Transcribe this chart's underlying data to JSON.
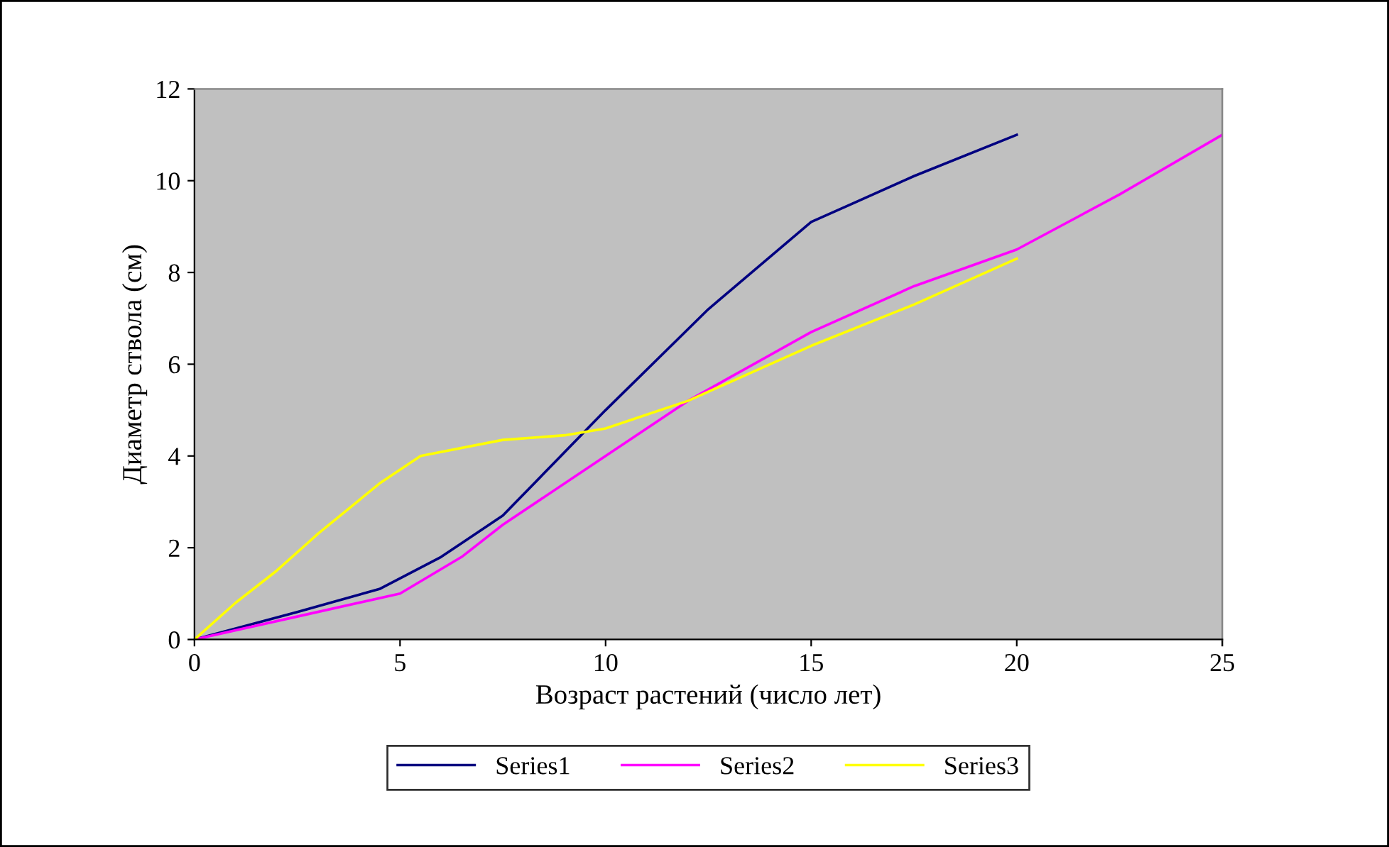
{
  "chart_data": {
    "type": "line",
    "xlabel": "Возраст растений (число лет)",
    "ylabel": "Диаметр ствола (см)",
    "xlim": [
      0,
      25
    ],
    "xticks": [
      0,
      5,
      10,
      15,
      20,
      25
    ],
    "ylim": [
      0,
      12
    ],
    "yticks": [
      0,
      2,
      4,
      6,
      8,
      10,
      12
    ],
    "grid": false,
    "legend": "bottom",
    "marker": "none",
    "line_style": "solid",
    "series": [
      {
        "name": "Series1",
        "color": "#000080",
        "x": [
          0,
          2.5,
          4.5,
          6,
          7.5,
          10,
          12.5,
          15,
          16,
          17.5,
          20
        ],
        "values": [
          0,
          0.6,
          1.1,
          1.8,
          2.7,
          5.0,
          7.2,
          9.1,
          9.5,
          10.1,
          11.0
        ]
      },
      {
        "name": "Series2",
        "color": "#ff00ff",
        "x": [
          0,
          2.5,
          5,
          6.5,
          7.5,
          10,
          12,
          15,
          17.5,
          20,
          22.5,
          25
        ],
        "values": [
          0,
          0.5,
          1.0,
          1.8,
          2.5,
          4.0,
          5.2,
          6.7,
          7.7,
          8.5,
          9.7,
          11.0
        ]
      },
      {
        "name": "Series3",
        "color": "#ffff00",
        "x": [
          0,
          1,
          2,
          3,
          4.5,
          5.5,
          7.5,
          9,
          10,
          11,
          12,
          15,
          17.5,
          20
        ],
        "values": [
          0,
          0.8,
          1.5,
          2.3,
          3.4,
          4.0,
          4.35,
          4.45,
          4.6,
          4.9,
          5.2,
          6.4,
          7.3,
          8.3
        ]
      }
    ]
  }
}
